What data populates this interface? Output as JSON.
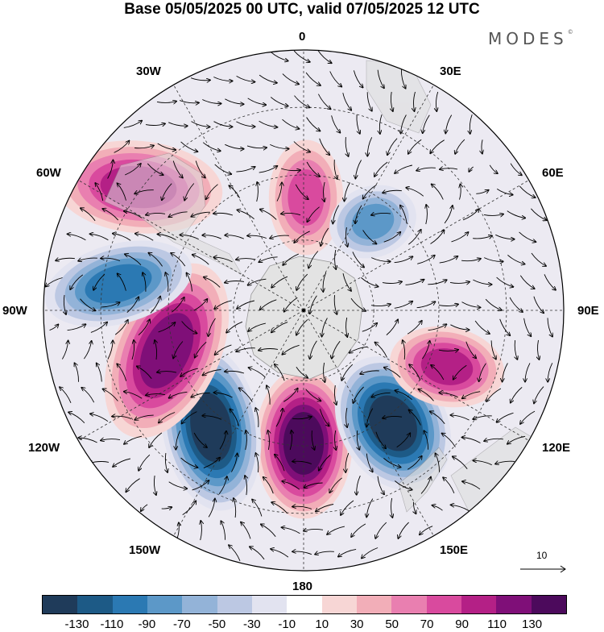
{
  "header": {
    "title": "Base 05/05/2025 00 UTC, valid 07/05/2025 12 UTC",
    "brand": "MODES",
    "brand_mark": "©"
  },
  "map": {
    "projection": "south polar stereographic",
    "longitude_labels": {
      "top": "0",
      "top_right": "30E",
      "right_upper": "60E",
      "right": "90E",
      "right_lower": "120E",
      "bottom_right": "150E",
      "bottom": "180",
      "bottom_left": "150W",
      "left_lower": "120W",
      "left": "90W",
      "left_upper": "60W",
      "top_left": "30W"
    },
    "reference_vector_label": "10",
    "anomaly_centers": [
      {
        "region": "South Pacific near 180",
        "sign": "positive",
        "max_class": "130"
      },
      {
        "region": "Amundsen Sea 120-150W",
        "sign": "negative",
        "max_class": "-130"
      },
      {
        "region": "south of New Zealand 150E",
        "sign": "negative",
        "max_class": "-130"
      },
      {
        "region": "Bellingshausen 100W",
        "sign": "positive",
        "max_class": "110"
      },
      {
        "region": "Southern Indian Ocean 110E",
        "sign": "positive",
        "max_class": "90"
      },
      {
        "region": "South Pacific 80W",
        "sign": "negative",
        "max_class": "-90"
      },
      {
        "region": "South Atlantic 60W",
        "sign": "positive",
        "max_class": "90"
      },
      {
        "region": "Weddell Sea 5E",
        "sign": "positive",
        "max_class": "70"
      },
      {
        "region": "South Atlantic 40E",
        "sign": "negative",
        "max_class": "-70"
      }
    ]
  },
  "colorbar": {
    "colors": [
      "#1f3b5a",
      "#1d5a86",
      "#2b79b3",
      "#5c98c8",
      "#93b3d8",
      "#bcc8e3",
      "#e2e3f0",
      "#ffffff",
      "#f7d6d5",
      "#f2aeb8",
      "#e97fb0",
      "#d94a9e",
      "#b42086",
      "#7f0f78",
      "#4c0a5c"
    ],
    "tick_labels": [
      "-130",
      "-110",
      "-90",
      "-70",
      "-50",
      "-30",
      "-10",
      "10",
      "30",
      "50",
      "70",
      "90",
      "110",
      "130"
    ]
  }
}
